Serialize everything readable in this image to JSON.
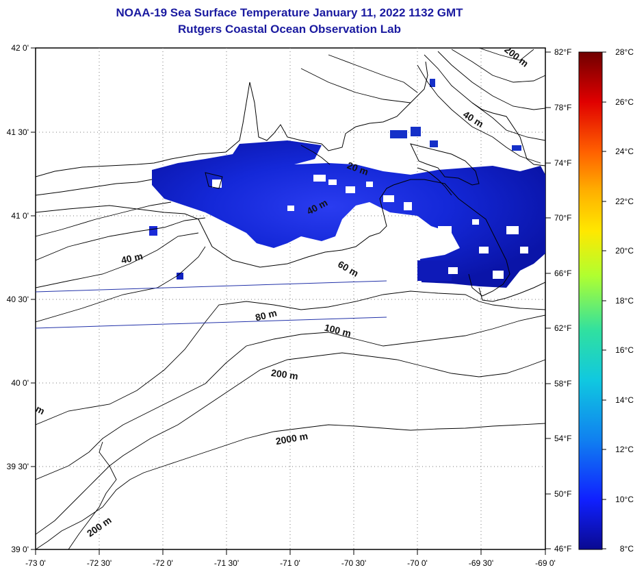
{
  "title": {
    "line1": "NOAA-19 Sea Surface Temperature January 11, 2022 1132 GMT",
    "line2": "Rutgers Coastal Ocean Observation Lab"
  },
  "axes": {
    "lat_labels": [
      "42 0'",
      "41 30'",
      "41 0'",
      "40 30'",
      "40 0'",
      "39 30'",
      "39 0'"
    ],
    "lon_labels": [
      "-73 0'",
      "-72 30'",
      "-72 0'",
      "-71 30'",
      "-71 0'",
      "-70 30'",
      "-70 0'",
      "-69 30'",
      "-69 0'"
    ],
    "fahrenheit_labels": [
      "82°F",
      "78°F",
      "74°F",
      "70°F",
      "66°F",
      "62°F",
      "58°F",
      "54°F",
      "50°F",
      "46°F"
    ]
  },
  "colorbar": {
    "celsius_labels": [
      "28°C",
      "26°C",
      "24°C",
      "22°C",
      "20°C",
      "18°C",
      "16°C",
      "14°C",
      "12°C",
      "10°C",
      "8°C"
    ],
    "colors": [
      "#7a0000",
      "#c00000",
      "#ff2a00",
      "#ff7a00",
      "#ffc800",
      "#e8ff10",
      "#90ff40",
      "#30e0a0",
      "#10c8e0",
      "#1080f0",
      "#1030ff",
      "#0a0aa8"
    ]
  },
  "contours": {
    "labels": [
      "200 m",
      "40 m",
      "20 m",
      "40 m",
      "40 m",
      "60 m",
      "80 m",
      "100 m",
      "200 m",
      "2000 m",
      "m",
      "200 m"
    ]
  }
}
